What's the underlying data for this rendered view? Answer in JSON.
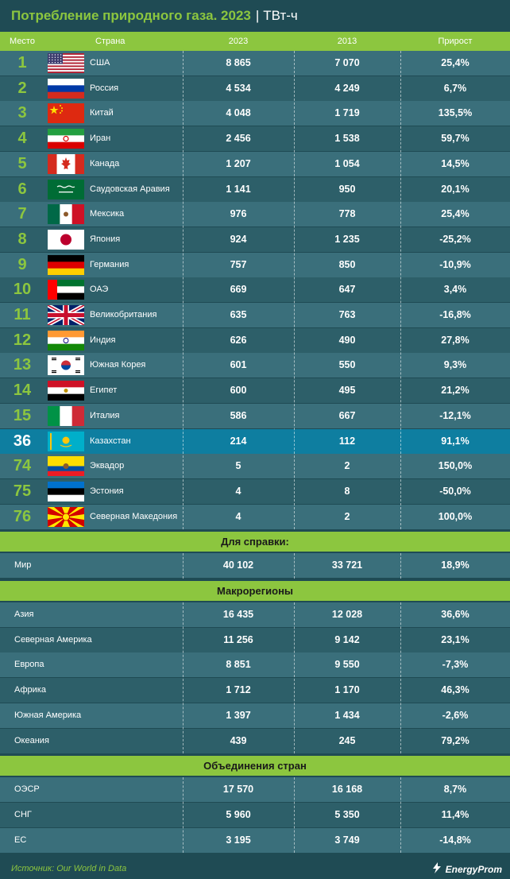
{
  "title": {
    "main": "Потребление природного газа. 2023",
    "separator": "|",
    "unit": "ТВт-ч"
  },
  "colors": {
    "background": "#1f4b54",
    "accent_green": "#8cc63f",
    "row_light": "#3a6f7b",
    "row_dark": "#2d5f69",
    "highlight": "#0e7ea0"
  },
  "chart_data": {
    "type": "table",
    "columns": [
      "Место",
      "Страна",
      "2023",
      "2013",
      "Прирост"
    ],
    "rows": [
      {
        "rank": "1",
        "country": "США",
        "flag": "usa-flag-icon",
        "v2023": "8 865",
        "v2013": "7 070",
        "growth": "25,4%"
      },
      {
        "rank": "2",
        "country": "Россия",
        "flag": "russia-flag-icon",
        "v2023": "4 534",
        "v2013": "4 249",
        "growth": "6,7%"
      },
      {
        "rank": "3",
        "country": "Китай",
        "flag": "china-flag-icon",
        "v2023": "4 048",
        "v2013": "1 719",
        "growth": "135,5%"
      },
      {
        "rank": "4",
        "country": "Иран",
        "flag": "iran-flag-icon",
        "v2023": "2 456",
        "v2013": "1 538",
        "growth": "59,7%"
      },
      {
        "rank": "5",
        "country": "Канада",
        "flag": "canada-flag-icon",
        "v2023": "1 207",
        "v2013": "1 054",
        "growth": "14,5%"
      },
      {
        "rank": "6",
        "country": "Саудовская Аравия",
        "flag": "saudi-arabia-flag-icon",
        "v2023": "1 141",
        "v2013": "950",
        "growth": "20,1%"
      },
      {
        "rank": "7",
        "country": "Мексика",
        "flag": "mexico-flag-icon",
        "v2023": "976",
        "v2013": "778",
        "growth": "25,4%"
      },
      {
        "rank": "8",
        "country": "Япония",
        "flag": "japan-flag-icon",
        "v2023": "924",
        "v2013": "1 235",
        "growth": "-25,2%"
      },
      {
        "rank": "9",
        "country": "Германия",
        "flag": "germany-flag-icon",
        "v2023": "757",
        "v2013": "850",
        "growth": "-10,9%"
      },
      {
        "rank": "10",
        "country": "ОАЭ",
        "flag": "uae-flag-icon",
        "v2023": "669",
        "v2013": "647",
        "growth": "3,4%"
      },
      {
        "rank": "11",
        "country": "Великобритания",
        "flag": "uk-flag-icon",
        "v2023": "635",
        "v2013": "763",
        "growth": "-16,8%"
      },
      {
        "rank": "12",
        "country": "Индия",
        "flag": "india-flag-icon",
        "v2023": "626",
        "v2013": "490",
        "growth": "27,8%"
      },
      {
        "rank": "13",
        "country": "Южная Корея",
        "flag": "south-korea-flag-icon",
        "v2023": "601",
        "v2013": "550",
        "growth": "9,3%"
      },
      {
        "rank": "14",
        "country": "Египет",
        "flag": "egypt-flag-icon",
        "v2023": "600",
        "v2013": "495",
        "growth": "21,2%"
      },
      {
        "rank": "15",
        "country": "Италия",
        "flag": "italy-flag-icon",
        "v2023": "586",
        "v2013": "667",
        "growth": "-12,1%"
      },
      {
        "rank": "36",
        "country": "Казахстан",
        "flag": "kazakhstan-flag-icon",
        "v2023": "214",
        "v2013": "112",
        "growth": "91,1%",
        "highlight": true
      },
      {
        "rank": "74",
        "country": "Эквадор",
        "flag": "ecuador-flag-icon",
        "v2023": "5",
        "v2013": "2",
        "growth": "150,0%"
      },
      {
        "rank": "75",
        "country": "Эстония",
        "flag": "estonia-flag-icon",
        "v2023": "4",
        "v2013": "8",
        "growth": "-50,0%"
      },
      {
        "rank": "76",
        "country": "Северная Македония",
        "flag": "north-macedonia-flag-icon",
        "v2023": "4",
        "v2013": "2",
        "growth": "100,0%"
      }
    ],
    "reference": {
      "heading": "Для справки:",
      "rows": [
        {
          "label": "Мир",
          "v2023": "40 102",
          "v2013": "33 721",
          "growth": "18,9%"
        }
      ]
    },
    "macroregions": {
      "heading": "Макрорегионы",
      "rows": [
        {
          "label": "Азия",
          "v2023": "16 435",
          "v2013": "12 028",
          "growth": "36,6%"
        },
        {
          "label": "Северная Америка",
          "v2023": "11 256",
          "v2013": "9 142",
          "growth": "23,1%"
        },
        {
          "label": "Европа",
          "v2023": "8 851",
          "v2013": "9 550",
          "growth": "-7,3%"
        },
        {
          "label": "Африка",
          "v2023": "1 712",
          "v2013": "1 170",
          "growth": "46,3%"
        },
        {
          "label": "Южная Америка",
          "v2023": "1 397",
          "v2013": "1 434",
          "growth": "-2,6%"
        },
        {
          "label": "Океания",
          "v2023": "439",
          "v2013": "245",
          "growth": "79,2%"
        }
      ]
    },
    "unions": {
      "heading": "Объединения стран",
      "rows": [
        {
          "label": "ОЭСР",
          "v2023": "17 570",
          "v2013": "16 168",
          "growth": "8,7%"
        },
        {
          "label": "СНГ",
          "v2023": "5 960",
          "v2013": "5 350",
          "growth": "11,4%"
        },
        {
          "label": "ЕС",
          "v2023": "3 195",
          "v2013": "3 749",
          "growth": "-14,8%"
        }
      ]
    }
  },
  "footer": {
    "source": "Источник: Our World in Data",
    "logo_text": "EnergyProm",
    "logo_icon": "energyprom-logo-icon"
  }
}
